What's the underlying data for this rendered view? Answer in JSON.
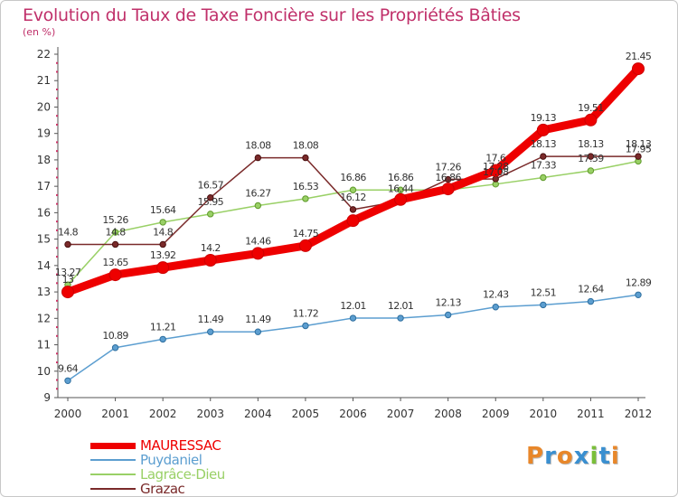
{
  "title": "Evolution du Taux de Taxe Foncière sur les Propriétés Bâties",
  "unit": "(en %)",
  "logo": "Proxiti",
  "chart_data": {
    "type": "line",
    "title": "Evolution du Taux de Taxe Foncière sur les Propriétés Bâties",
    "ylabel": "(en %)",
    "xlabel": "",
    "ylim": [
      9,
      22
    ],
    "grid": false,
    "legend_position": "bottom-left",
    "x": [
      "2000",
      "2001",
      "2002",
      "2003",
      "2004",
      "2005",
      "2006",
      "2007",
      "2008",
      "2009",
      "2010",
      "2011",
      "2012"
    ],
    "y_ticks": [
      "9",
      "10",
      "11",
      "12",
      "13",
      "14",
      "15",
      "16",
      "17",
      "18",
      "19",
      "20",
      "21",
      "22"
    ],
    "series": [
      {
        "name": "MAURESSAC",
        "color": "#ee0000",
        "values": [
          13,
          13.65,
          13.92,
          14.2,
          14.46,
          14.75,
          15.7,
          16.5,
          16.9,
          17.6,
          19.13,
          19.51,
          21.45
        ],
        "labels": [
          "13",
          "13.65",
          "13.92",
          "14.2",
          "14.46",
          "14.75",
          "",
          "",
          "",
          "17.6",
          "19.13",
          "19.51",
          "21.45"
        ]
      },
      {
        "name": "Puydaniel",
        "color": "#5c9ed0",
        "values": [
          9.64,
          10.89,
          11.21,
          11.49,
          11.49,
          11.72,
          12.01,
          12.01,
          12.13,
          12.43,
          12.51,
          12.64,
          12.89
        ],
        "labels": [
          "9.64",
          "10.89",
          "11.21",
          "11.49",
          "11.49",
          "11.72",
          "12.01",
          "12.01",
          "12.13",
          "12.43",
          "12.51",
          "12.64",
          "12.89"
        ]
      },
      {
        "name": "Lagrâce-Dieu",
        "color": "#99d066",
        "values": [
          13.27,
          15.26,
          15.64,
          15.95,
          16.27,
          16.53,
          16.86,
          16.86,
          16.86,
          17.08,
          17.33,
          17.59,
          17.95
        ],
        "labels": [
          "13.27",
          "15.26",
          "15.64",
          "15.95",
          "16.27",
          "16.53",
          "16.86",
          "16.86",
          "16.86",
          "17.08",
          "17.33",
          "17.59",
          "17.95"
        ]
      },
      {
        "name": "Grazac",
        "color": "#7a2a2a",
        "values": [
          14.8,
          14.8,
          14.8,
          16.57,
          18.08,
          18.08,
          16.12,
          16.44,
          17.26,
          17.28,
          18.13,
          18.13,
          18.13
        ],
        "labels": [
          "14.8",
          "14.8",
          "14.8",
          "16.57",
          "18.08",
          "18.08",
          "16.12",
          "16.44",
          "17.26",
          "17.28",
          "18.13",
          "18.13",
          "18.13"
        ]
      }
    ]
  },
  "colors": {
    "title": "#c0306a",
    "axis": "#555555",
    "tick_marks": "#cc3366",
    "logo": [
      "#e8872a",
      "#3a8fd0",
      "#e8872a",
      "#3a8fd0",
      "#7abf3a",
      "#3a8fd0",
      "#e8872a"
    ]
  }
}
